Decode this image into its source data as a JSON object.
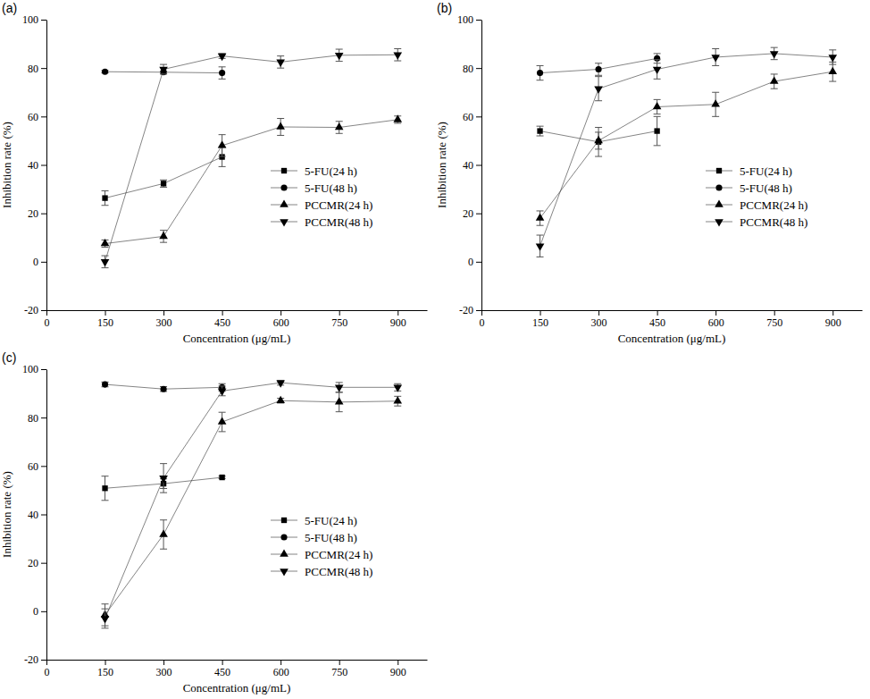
{
  "chart_data": [
    {
      "type": "line",
      "title": "(a)",
      "x_label": "Concentration (μg/mL)",
      "y_label": "Inhibition rate (%)",
      "x": [
        150,
        300,
        450,
        600,
        750,
        900
      ],
      "xlim": [
        0,
        975
      ],
      "xticks": [
        0,
        150,
        300,
        450,
        600,
        750,
        900
      ],
      "ylim": [
        -20,
        100
      ],
      "yticks": [
        -20,
        0,
        20,
        40,
        60,
        80,
        100
      ],
      "legend": "center right",
      "series": [
        {
          "name": "5-FU(24 h)",
          "color": "#333333",
          "marker": "square",
          "values": [
            26.3,
            32.3,
            43.3,
            null,
            null,
            null
          ],
          "errors": [
            3,
            1.5,
            4,
            null,
            null,
            null
          ]
        },
        {
          "name": "5-FU(48 h)",
          "color": "#333333",
          "marker": "circle",
          "values": [
            78.5,
            78.3,
            78.0,
            null,
            null,
            null
          ],
          "errors": [
            0.5,
            0.5,
            2.5,
            null,
            null,
            null
          ]
        },
        {
          "name": "PCCMR(24 h)",
          "color": "#333333",
          "marker": "triangle-up",
          "values": [
            7.5,
            10.5,
            48,
            55.7,
            55.5,
            58.7
          ],
          "errors": [
            1.5,
            2.5,
            4.5,
            3.5,
            2.5,
            1.5
          ]
        },
        {
          "name": "PCCMR(48 h)",
          "color": "#333333",
          "marker": "triangle-down",
          "values": [
            0,
            79.5,
            85,
            82.5,
            85.3,
            85.5
          ],
          "errors": [
            2.5,
            2,
            1,
            2.5,
            2.5,
            2.5
          ]
        }
      ]
    },
    {
      "type": "line",
      "title": "(b)",
      "x_label": "Concentration (μg/mL)",
      "y_label": "Inhibition rate (%)",
      "x": [
        150,
        300,
        450,
        600,
        750,
        900
      ],
      "xlim": [
        0,
        975
      ],
      "xticks": [
        0,
        150,
        300,
        450,
        600,
        750,
        900
      ],
      "ylim": [
        -20,
        100
      ],
      "yticks": [
        -20,
        0,
        20,
        40,
        60,
        80,
        100
      ],
      "legend": "center right",
      "series": [
        {
          "name": "5-FU(24 h)",
          "color": "#333333",
          "marker": "square",
          "values": [
            54,
            49.5,
            54,
            null,
            null,
            null
          ],
          "errors": [
            2,
            6,
            6,
            null,
            null,
            null
          ]
        },
        {
          "name": "5-FU(48 h)",
          "color": "#333333",
          "marker": "circle",
          "values": [
            78,
            79.5,
            84,
            null,
            null,
            null
          ],
          "errors": [
            3,
            2.5,
            2,
            null,
            null,
            null
          ]
        },
        {
          "name": "PCCMR(24 h)",
          "color": "#333333",
          "marker": "triangle-up",
          "values": [
            18,
            50,
            64,
            65,
            74.5,
            78.5
          ],
          "errors": [
            3,
            3.5,
            3,
            5,
            3,
            4
          ]
        },
        {
          "name": "PCCMR(48 h)",
          "color": "#333333",
          "marker": "triangle-down",
          "values": [
            6.5,
            71.5,
            79.5,
            84.5,
            86,
            84.5
          ],
          "errors": [
            4.5,
            5,
            4,
            3.5,
            2.5,
            3
          ]
        }
      ]
    },
    {
      "type": "line",
      "title": "(c)",
      "x_label": "Concentration (μg/mL)",
      "y_label": "Inhibition rate (%)",
      "x": [
        150,
        300,
        450,
        600,
        750,
        900
      ],
      "xlim": [
        0,
        975
      ],
      "xticks": [
        0,
        150,
        300,
        450,
        600,
        750,
        900
      ],
      "ylim": [
        -20,
        100
      ],
      "yticks": [
        -20,
        0,
        20,
        40,
        60,
        80,
        100
      ],
      "legend": "center right",
      "series": [
        {
          "name": "5-FU(24 h)",
          "color": "#333333",
          "marker": "square",
          "values": [
            50.8,
            52.7,
            55.3,
            null,
            null,
            null
          ],
          "errors": [
            5,
            2,
            0.5,
            null,
            null,
            null
          ]
        },
        {
          "name": "5-FU(48 h)",
          "color": "#333333",
          "marker": "circle",
          "values": [
            93.7,
            91.8,
            92.5,
            null,
            null,
            null
          ],
          "errors": [
            1,
            1,
            1.5,
            null,
            null,
            null
          ]
        },
        {
          "name": "PCCMR(24 h)",
          "color": "#333333",
          "marker": "triangle-up",
          "values": [
            -1.5,
            31.7,
            78.2,
            87,
            86.4,
            86.8
          ],
          "errors": [
            4.5,
            6,
            4,
            1,
            4,
            2
          ]
        },
        {
          "name": "PCCMR(48 h)",
          "color": "#333333",
          "marker": "triangle-down",
          "values": [
            -3,
            55,
            91,
            94.4,
            92.5,
            92.5
          ],
          "errors": [
            4,
            6,
            2,
            1,
            2,
            1.5
          ]
        }
      ]
    }
  ]
}
